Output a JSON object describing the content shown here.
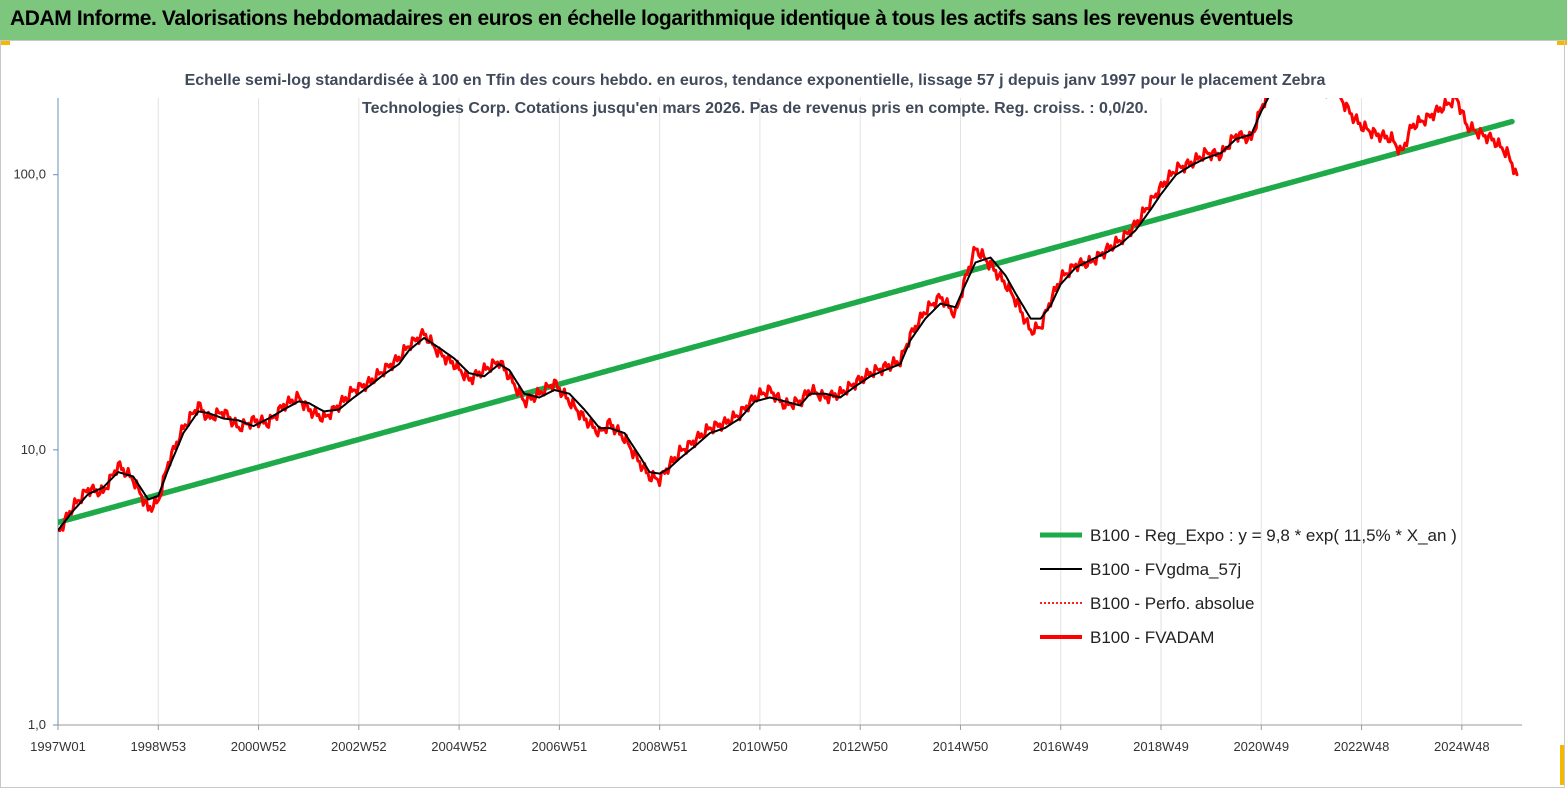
{
  "header": {
    "title": "ADAM Informe. Valorisations hebdomadaires en euros en échelle logarithmique identique à tous les actifs sans les revenus éventuels"
  },
  "colors": {
    "header_bg": "#7dc67d",
    "corner_accent": "#f5b800",
    "trend": "#1faa4a",
    "smooth": "#000000",
    "perf": "#ff2020",
    "fvadam": "#ff0000"
  },
  "chart_data": {
    "type": "line",
    "title": "Echelle semi-log standardisée à 100 en Tfin des cours hebdo. en euros, tendance exponentielle, lissage 57 j depuis janv 1997 pour le placement Zebra Technologies Corp. Cotations jusqu'en mars 2026. Pas de revenus pris en compte. Reg. croiss. : 0,0/20.",
    "yscale": "log",
    "ylim": [
      1,
      190
    ],
    "xlim": [
      1997.0,
      2026.2
    ],
    "y_ticks": [
      {
        "value": 1,
        "label": "1,0"
      },
      {
        "value": 10,
        "label": "10,0"
      },
      {
        "value": 100,
        "label": "100,0"
      }
    ],
    "x_ticks": [
      {
        "value": 1997.0,
        "label": "1997W01"
      },
      {
        "value": 1999.0,
        "label": "1998W53"
      },
      {
        "value": 2001.0,
        "label": "2000W52"
      },
      {
        "value": 2003.0,
        "label": "2002W52"
      },
      {
        "value": 2005.0,
        "label": "2004W52"
      },
      {
        "value": 2007.0,
        "label": "2006W51"
      },
      {
        "value": 2009.0,
        "label": "2008W51"
      },
      {
        "value": 2011.0,
        "label": "2010W50"
      },
      {
        "value": 2013.0,
        "label": "2012W50"
      },
      {
        "value": 2015.0,
        "label": "2014W50"
      },
      {
        "value": 2017.0,
        "label": "2016W49"
      },
      {
        "value": 2019.0,
        "label": "2018W49"
      },
      {
        "value": 2021.0,
        "label": "2020W49"
      },
      {
        "value": 2023.0,
        "label": "2022W48"
      },
      {
        "value": 2025.0,
        "label": "2024W48"
      }
    ],
    "grid": "vertical",
    "legend_position": "right",
    "series": [
      {
        "name": "B100 - Reg_Expo : y = 9,8 * exp( 11,5% *  X_an )",
        "role": "trend",
        "x": [
          1997.0,
          2026.0
        ],
        "y": [
          5.45,
          156
        ]
      },
      {
        "name": "B100 - FVgdma_57j",
        "role": "smooth",
        "x": [
          1997.0,
          1997.3,
          1997.6,
          1997.9,
          1998.2,
          1998.5,
          1998.8,
          1999.0,
          1999.2,
          1999.5,
          1999.8,
          2000.0,
          2000.3,
          2000.6,
          2000.9,
          2001.2,
          2001.5,
          2001.8,
          2002.0,
          2002.3,
          2002.6,
          2002.9,
          2003.2,
          2003.5,
          2003.8,
          2004.0,
          2004.3,
          2004.6,
          2004.9,
          2005.2,
          2005.5,
          2005.8,
          2006.0,
          2006.3,
          2006.6,
          2006.9,
          2007.2,
          2007.5,
          2007.8,
          2008.0,
          2008.3,
          2008.6,
          2008.8,
          2009.0,
          2009.2,
          2009.4,
          2009.7,
          2010.0,
          2010.3,
          2010.6,
          2010.9,
          2011.2,
          2011.5,
          2011.8,
          2012.0,
          2012.3,
          2012.6,
          2012.9,
          2013.2,
          2013.5,
          2013.8,
          2014.0,
          2014.3,
          2014.6,
          2014.9,
          2015.1,
          2015.3,
          2015.6,
          2015.9,
          2016.1,
          2016.4,
          2016.6,
          2016.8,
          2017.0,
          2017.3,
          2017.6,
          2017.9,
          2018.2,
          2018.5,
          2018.8,
          2019.0,
          2019.3,
          2019.6,
          2019.9,
          2020.2,
          2020.5,
          2020.8,
          2021.0,
          2021.2
        ],
        "y": [
          5.1,
          6.0,
          6.9,
          7.3,
          8.3,
          8.0,
          6.6,
          6.8,
          8.5,
          11.5,
          13.8,
          13.6,
          13.0,
          12.8,
          12.2,
          13.0,
          14.0,
          15.0,
          14.8,
          13.8,
          14.0,
          15.5,
          17.0,
          18.8,
          20.5,
          23.0,
          25.5,
          23.5,
          21.5,
          19.0,
          18.5,
          20.5,
          19.5,
          16.0,
          15.5,
          16.5,
          16.0,
          14.0,
          12.0,
          12.0,
          11.5,
          9.5,
          8.3,
          8.2,
          8.6,
          9.3,
          10.3,
          11.5,
          12.0,
          13.0,
          15.0,
          15.5,
          15.0,
          14.5,
          16.0,
          16.0,
          15.5,
          17.0,
          18.5,
          19.5,
          20.5,
          25.0,
          30.0,
          34.0,
          33.0,
          40.0,
          48.0,
          50.0,
          43.0,
          37.0,
          30.0,
          30.0,
          33.5,
          40.0,
          46.0,
          49.0,
          52.0,
          56.0,
          63.0,
          75.0,
          85.0,
          100.0,
          108.0,
          115.0,
          120.0,
          135.0,
          140.0,
          170.0,
          200.0
        ]
      },
      {
        "name": "B100 - Perfo. absolue",
        "role": "perf",
        "x": [],
        "y": []
      },
      {
        "name": "B100 - FVADAM",
        "role": "fvadam",
        "x": [
          1997.0,
          1997.3,
          1997.6,
          1997.9,
          1998.2,
          1998.5,
          1998.8,
          1999.0,
          1999.2,
          1999.5,
          1999.8,
          2000.0,
          2000.3,
          2000.6,
          2000.9,
          2001.2,
          2001.5,
          2001.8,
          2002.0,
          2002.3,
          2002.6,
          2002.9,
          2003.2,
          2003.5,
          2003.8,
          2004.0,
          2004.3,
          2004.6,
          2004.9,
          2005.2,
          2005.5,
          2005.8,
          2006.0,
          2006.3,
          2006.6,
          2006.9,
          2007.2,
          2007.5,
          2007.8,
          2008.0,
          2008.3,
          2008.6,
          2008.8,
          2009.0,
          2009.2,
          2009.4,
          2009.7,
          2010.0,
          2010.3,
          2010.6,
          2010.9,
          2011.2,
          2011.5,
          2011.8,
          2012.0,
          2012.3,
          2012.6,
          2012.9,
          2013.2,
          2013.5,
          2013.8,
          2014.0,
          2014.3,
          2014.6,
          2014.9,
          2015.1,
          2015.3,
          2015.6,
          2015.9,
          2016.1,
          2016.4,
          2016.6,
          2016.8,
          2017.0,
          2017.3,
          2017.6,
          2017.9,
          2018.2,
          2018.5,
          2018.8,
          2019.0,
          2019.3,
          2019.6,
          2019.9,
          2020.2,
          2020.5,
          2020.8,
          2021.0,
          2021.2,
          2022.5,
          2022.8,
          2023.0,
          2023.3,
          2023.6,
          2023.8,
          2024.0,
          2024.3,
          2024.6,
          2024.9,
          2025.1,
          2025.4,
          2025.6,
          2025.9,
          2026.1
        ],
        "y": [
          5.0,
          6.2,
          7.2,
          7.0,
          8.8,
          7.8,
          6.1,
          6.5,
          9.0,
          12.0,
          14.5,
          13.0,
          13.8,
          12.0,
          12.8,
          12.5,
          14.5,
          15.5,
          14.0,
          13.0,
          14.5,
          16.5,
          17.5,
          19.5,
          21.5,
          24.0,
          26.5,
          22.5,
          20.5,
          18.0,
          19.5,
          21.0,
          18.5,
          15.0,
          16.0,
          17.5,
          15.0,
          13.0,
          11.5,
          12.5,
          11.0,
          9.0,
          8.0,
          7.8,
          8.8,
          9.8,
          10.8,
          12.0,
          12.5,
          13.5,
          15.5,
          16.5,
          14.5,
          15.0,
          16.5,
          15.5,
          16.0,
          17.5,
          19.0,
          20.0,
          21.0,
          26.0,
          32.0,
          36.0,
          31.0,
          42.0,
          54.0,
          47.0,
          40.0,
          35.0,
          27.0,
          28.0,
          35.0,
          42.0,
          47.0,
          48.0,
          53.0,
          58.0,
          66.0,
          80.0,
          90.0,
          105.0,
          110.0,
          120.0,
          118.0,
          140.0,
          135.0,
          175.0,
          210.0,
          200.0,
          165.0,
          150.0,
          140.0,
          135.0,
          120.0,
          150.0,
          160.0,
          175.0,
          190.0,
          150.0,
          140.0,
          135.0,
          120.0,
          100.0
        ]
      }
    ]
  }
}
